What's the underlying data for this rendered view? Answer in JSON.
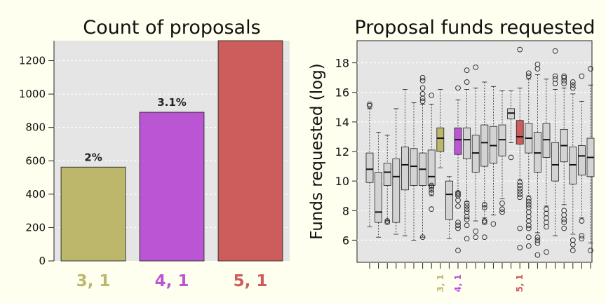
{
  "chart_data": [
    {
      "type": "bar",
      "title": "Count of proposals",
      "xlabel": "",
      "ylabel": "",
      "ylim": [
        0,
        1320
      ],
      "yticks": [
        0,
        200,
        400,
        600,
        800,
        1000,
        1200
      ],
      "grid": true,
      "categories": [
        "3, 1",
        "4, 1",
        "5, 1"
      ],
      "values": [
        562,
        891,
        1325
      ],
      "bar_labels": [
        "2%",
        "3.1%",
        ""
      ],
      "colors": [
        "#bdb76b",
        "#ba55d3",
        "#cd5c5c"
      ]
    },
    {
      "type": "box",
      "title": "Proposal funds requested",
      "xlabel": "",
      "ylabel": "Funds requested (log)",
      "ylim": [
        4.5,
        19.5
      ],
      "yticks": [
        6,
        8,
        10,
        12,
        14,
        16,
        18
      ],
      "grid": true,
      "highlight_labels": [
        {
          "index": 8,
          "label": "3, 1",
          "color": "#bdb76b"
        },
        {
          "index": 10,
          "label": "4, 1",
          "color": "#ba55d3"
        },
        {
          "index": 17,
          "label": "5, 1",
          "color": "#cd5c5c"
        }
      ],
      "boxes": [
        {
          "q1": 9.9,
          "median": 10.8,
          "q3": 11.9,
          "whislo": 6.9,
          "whishi": 14.9,
          "fliers": [
            15.1,
            15.2
          ]
        },
        {
          "q1": 7.2,
          "median": 7.9,
          "q3": 10.6,
          "whislo": 6.2,
          "whishi": 13.3,
          "fliers": []
        },
        {
          "q1": 9.7,
          "median": 10.6,
          "q3": 11.2,
          "whislo": 7.3,
          "whishi": 13.1,
          "fliers": [
            7.2,
            7.3
          ]
        },
        {
          "q1": 7.2,
          "median": 10.3,
          "q3": 11.5,
          "whislo": 6.4,
          "whishi": 14.9,
          "fliers": []
        },
        {
          "q1": 9.4,
          "median": 11.1,
          "q3": 12.3,
          "whislo": 6.3,
          "whishi": 16.2,
          "fliers": []
        },
        {
          "q1": 9.7,
          "median": 11.0,
          "q3": 12.2,
          "whislo": 6.0,
          "whishi": 15.3,
          "fliers": []
        },
        {
          "q1": 9.7,
          "median": 10.8,
          "q3": 11.9,
          "whislo": 6.2,
          "whishi": 15.2,
          "fliers": [
            6.2,
            15.4,
            15.6,
            15.9,
            16.3,
            16.8,
            17.0
          ]
        },
        {
          "q1": 9.7,
          "median": 10.3,
          "q3": 12.1,
          "whislo": 9.0,
          "whishi": 15.2,
          "fliers": [
            8.1,
            9.2,
            9.4,
            9.6,
            9.7,
            15.8
          ]
        },
        {
          "q1": 12.0,
          "median": 12.9,
          "q3": 13.6,
          "whislo": 10.9,
          "whishi": 16.2,
          "fliers": []
        },
        {
          "q1": 7.4,
          "median": 9.1,
          "q3": 10.0,
          "whislo": 6.1,
          "whishi": 10.3,
          "fliers": []
        },
        {
          "q1": 11.8,
          "median": 12.8,
          "q3": 13.6,
          "whislo": 9.3,
          "whishi": 15.5,
          "fliers": [
            5.3,
            6.8,
            7.0,
            7.2,
            8.3,
            8.7,
            9.0,
            9.1,
            9.2,
            16.3
          ]
        },
        {
          "q1": 11.5,
          "median": 12.8,
          "q3": 13.6,
          "whislo": 8.6,
          "whishi": 16.2,
          "fliers": [
            6.1,
            7.0,
            7.4,
            7.6,
            7.9,
            8.1,
            8.3,
            8.5,
            16.7,
            17.5
          ]
        },
        {
          "q1": 10.6,
          "median": 11.9,
          "q3": 13.1,
          "whislo": 7.3,
          "whishi": 16.3,
          "fliers": [
            6.2,
            6.6,
            17.7
          ]
        },
        {
          "q1": 11.0,
          "median": 12.6,
          "q3": 13.8,
          "whislo": 7.5,
          "whishi": 16.7,
          "fliers": [
            6.2,
            7.2,
            7.3,
            8.2,
            8.4
          ]
        },
        {
          "q1": 11.2,
          "median": 12.4,
          "q3": 13.7,
          "whislo": 7.7,
          "whishi": 16.4,
          "fliers": [
            7.1
          ]
        },
        {
          "q1": 11.7,
          "median": 12.8,
          "q3": 13.8,
          "whislo": 8.8,
          "whishi": 16.1,
          "fliers": [
            7.9,
            8.1,
            8.5
          ]
        },
        {
          "q1": 14.2,
          "median": 14.6,
          "q3": 14.9,
          "whislo": 12.6,
          "whishi": 16.1,
          "fliers": [
            11.6
          ]
        },
        {
          "q1": 12.5,
          "median": 13.0,
          "q3": 14.1,
          "whislo": 10.1,
          "whishi": 16.3,
          "fliers": [
            5.5,
            6.8,
            8.9,
            9.1,
            9.3,
            9.5,
            9.7,
            9.9,
            18.9
          ]
        },
        {
          "q1": 11.9,
          "median": 12.9,
          "q3": 13.9,
          "whislo": 9.0,
          "whishi": 16.9,
          "fliers": [
            5.6,
            6.2,
            6.8,
            7.0,
            7.3,
            7.6,
            7.9,
            8.2,
            8.4,
            8.6,
            8.8,
            17.1,
            17.3
          ]
        },
        {
          "q1": 10.6,
          "median": 11.9,
          "q3": 13.3,
          "whislo": 6.5,
          "whishi": 17.2,
          "fliers": [
            5.0,
            5.8,
            6.0,
            6.2,
            17.6,
            17.9
          ]
        },
        {
          "q1": 11.6,
          "median": 12.8,
          "q3": 13.9,
          "whislo": 8.3,
          "whishi": 16.9,
          "fliers": [
            5.2,
            6.9,
            7.2,
            7.5,
            7.8,
            8.1
          ]
        },
        {
          "q1": 10.0,
          "median": 11.1,
          "q3": 12.6,
          "whislo": 6.3,
          "whishi": 16.2,
          "fliers": [
            16.6,
            16.9,
            17.1,
            18.8
          ]
        },
        {
          "q1": 11.3,
          "median": 12.4,
          "q3": 13.5,
          "whislo": 8.4,
          "whishi": 16.3,
          "fliers": [
            6.8,
            7.2,
            7.4,
            7.7,
            8.0,
            16.6,
            16.8,
            17.0,
            17.1
          ]
        },
        {
          "q1": 9.8,
          "median": 11.1,
          "q3": 12.3,
          "whislo": 6.4,
          "whishi": 15.9,
          "fliers": [
            5.3,
            5.7,
            6.0,
            16.3,
            16.5,
            16.7
          ]
        },
        {
          "q1": 10.4,
          "median": 11.7,
          "q3": 12.4,
          "whislo": 7.5,
          "whishi": 15.4,
          "fliers": [
            6.1,
            6.3,
            7.3,
            17.1
          ]
        },
        {
          "q1": 10.3,
          "median": 11.6,
          "q3": 12.9,
          "whislo": 5.8,
          "whishi": 16.5,
          "fliers": [
            5.3,
            17.6
          ]
        }
      ]
    }
  ]
}
